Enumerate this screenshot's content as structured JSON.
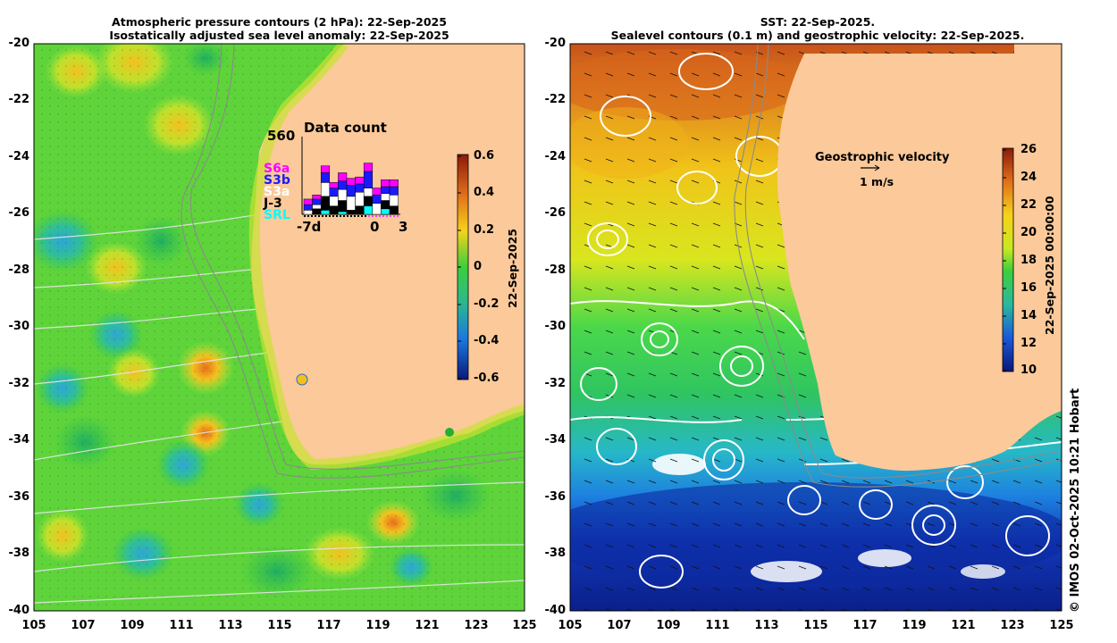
{
  "left_panel": {
    "title_line1": "Atmospheric pressure contours (2 hPa): 22-Sep-2025",
    "title_line2": "Isostatically adjusted sea level anomaly: 22-Sep-2025",
    "colorbar": {
      "ticks": [
        "0.6",
        "0.4",
        "0.2",
        "0",
        "-0.2",
        "-0.4",
        "-0.6"
      ],
      "label": "22-Sep-2025",
      "range": [
        -0.6,
        0.6
      ]
    },
    "data_count": {
      "title": "Data count",
      "max_label": "560",
      "satellites": [
        {
          "name": "S6a",
          "color": "#ff00ff"
        },
        {
          "name": "S3b",
          "color": "#1a1aff"
        },
        {
          "name": "S3a",
          "color": "#ffffff"
        },
        {
          "name": "J-3",
          "color": "#000000"
        },
        {
          "name": "SRL",
          "color": "#00ffff"
        }
      ],
      "axis_labels": [
        "-7d",
        "0",
        "3"
      ]
    }
  },
  "right_panel": {
    "title_line1": "SST: 22-Sep-2025.",
    "title_line2": "Sealevel contours (0.1 m) and geostrophic velocity: 22-Sep-2025.",
    "colorbar": {
      "ticks": [
        "26",
        "24",
        "22",
        "20",
        "18",
        "16",
        "14",
        "12",
        "10"
      ],
      "label": "22-Sep-2025 00:00:00",
      "range": [
        10,
        26
      ]
    },
    "velocity_legend": {
      "title": "Geostrophic velocity",
      "scale": "1 m/s"
    }
  },
  "axes": {
    "lat_labels": [
      "-20",
      "-22",
      "-24",
      "-26",
      "-28",
      "-30",
      "-32",
      "-34",
      "-36",
      "-38",
      "-40"
    ],
    "lon_labels": [
      "105",
      "107",
      "109",
      "111",
      "113",
      "115",
      "117",
      "119",
      "121",
      "123",
      "125"
    ]
  },
  "credit": "© IMOS 02-Oct-2025 10:21 Hobart",
  "colors": {
    "land": "#fbc99a",
    "ocean_green": "#3ad43a",
    "warm": "#d9551a",
    "cold": "#0b1f8c"
  }
}
